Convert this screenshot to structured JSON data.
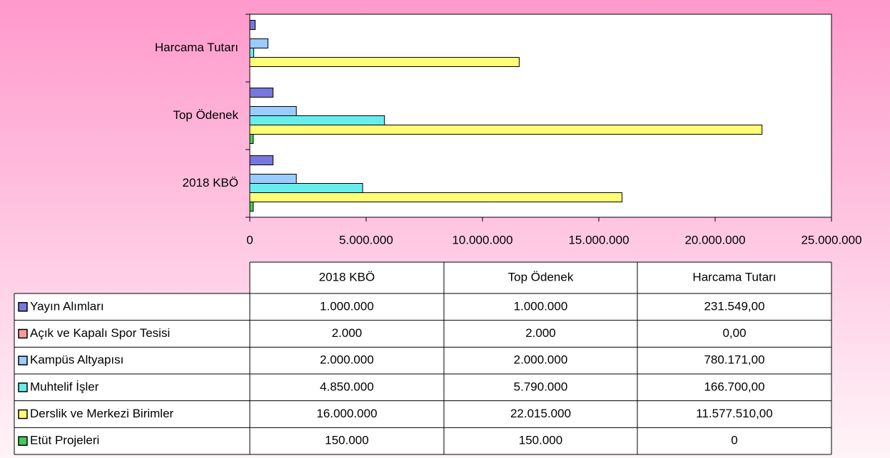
{
  "chart_data": {
    "type": "bar",
    "orientation": "horizontal",
    "categories": [
      "2018 KBÖ",
      "Top Ödenek",
      "Harcama Tutarı"
    ],
    "series": [
      {
        "name": "Yayın Alımları",
        "color": "#7777dd",
        "values": [
          1000000,
          1000000,
          231549
        ],
        "value_labels": [
          "1.000.000",
          "1.000.000",
          "231.549,00"
        ]
      },
      {
        "name": "Açık ve Kapalı Spor Tesisi",
        "color": "#ff9999",
        "values": [
          2000,
          2000,
          0
        ],
        "value_labels": [
          "2.000",
          "2.000",
          "0,00"
        ]
      },
      {
        "name": "Kampüs Altyapısı",
        "color": "#99ccff",
        "values": [
          2000000,
          2000000,
          780171
        ],
        "value_labels": [
          "2.000.000",
          "2.000.000",
          "780.171,00"
        ]
      },
      {
        "name": "Muhtelif İşler",
        "color": "#66eeee",
        "values": [
          4850000,
          5790000,
          166700
        ],
        "value_labels": [
          "4.850.000",
          "5.790.000",
          "166.700,00"
        ]
      },
      {
        "name": "Derslik ve Merkezi Birimler",
        "color": "#ffff77",
        "values": [
          16000000,
          22015000,
          11577510
        ],
        "value_labels": [
          "16.000.000",
          "22.015.000",
          "11.577.510,00"
        ]
      },
      {
        "name": "Etüt Projeleri",
        "color": "#44cc55",
        "values": [
          150000,
          150000,
          0
        ],
        "value_labels": [
          "150.000",
          "150.000",
          "0"
        ]
      }
    ],
    "xlim": [
      0,
      25000000
    ],
    "xticks": [
      0,
      {
        "value": 5000000,
        "label": "5.000.000"
      },
      {
        "value": 10000000,
        "label": "10.000.000"
      },
      {
        "value": 15000000,
        "label": "15.000.000"
      },
      {
        "value": 20000000,
        "label": "20.000.000"
      },
      {
        "value": 25000000,
        "label": "25.000.000"
      }
    ],
    "grid": false,
    "data_table": true
  }
}
